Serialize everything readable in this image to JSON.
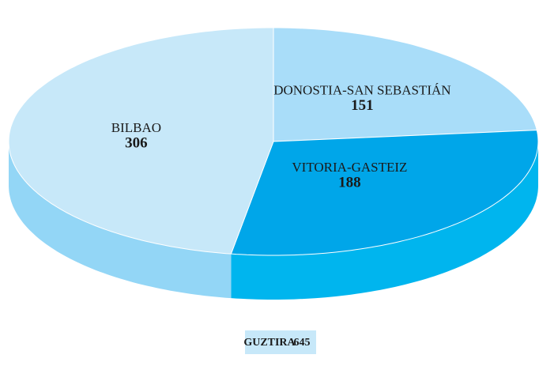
{
  "chart_data": {
    "type": "pie",
    "categories": [
      "DONOSTIA-SAN SEBASTIÁN",
      "VITORIA-GASTEIZ",
      "BILBAO"
    ],
    "values": [
      151,
      188,
      306
    ],
    "colors": [
      "#a9ddf9",
      "#00a6e9",
      "#c7e8f9"
    ],
    "side_colors": [
      "#8fd3f5",
      "#00b5ee",
      "#93d6f6"
    ],
    "total": {
      "label": "GUZTIRA",
      "value": 645
    }
  }
}
